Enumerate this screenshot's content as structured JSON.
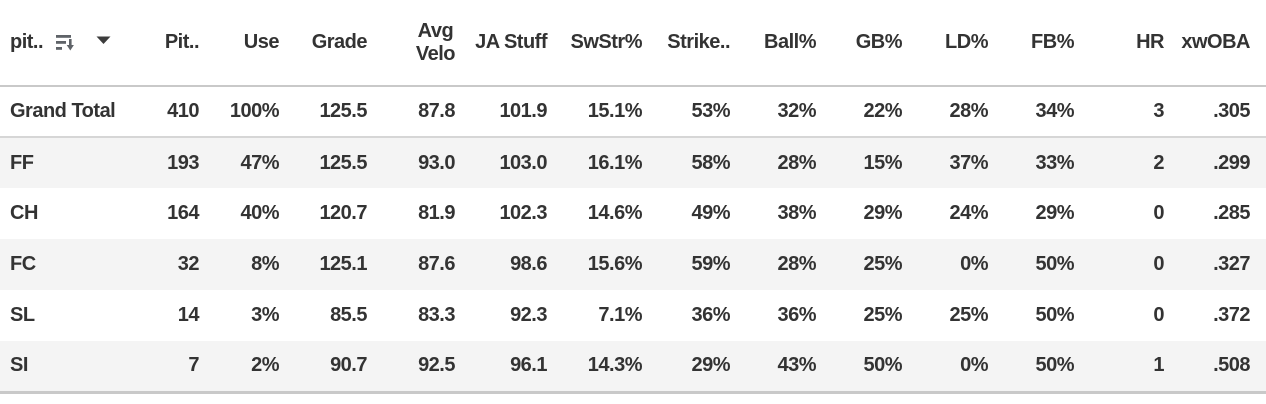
{
  "table": {
    "pitch_column": {
      "label": "pit.."
    },
    "columns": [
      "Pit..",
      "Use",
      "Grade",
      "Avg\nVelo",
      "JA Stuff",
      "SwStr%",
      "Strike..",
      "Ball%",
      "GB%",
      "LD%",
      "FB%",
      "HR",
      "xwOBA"
    ],
    "rows": [
      {
        "pitch": "Grand Total",
        "total": true,
        "values": [
          "410",
          "100%",
          "125.5",
          "87.8",
          "101.9",
          "15.1%",
          "53%",
          "32%",
          "22%",
          "28%",
          "34%",
          "3",
          ".305"
        ]
      },
      {
        "pitch": "FF",
        "total": false,
        "values": [
          "193",
          "47%",
          "125.5",
          "93.0",
          "103.0",
          "16.1%",
          "58%",
          "28%",
          "15%",
          "37%",
          "33%",
          "2",
          ".299"
        ]
      },
      {
        "pitch": "CH",
        "total": false,
        "values": [
          "164",
          "40%",
          "120.7",
          "81.9",
          "102.3",
          "14.6%",
          "49%",
          "38%",
          "29%",
          "24%",
          "29%",
          "0",
          ".285"
        ]
      },
      {
        "pitch": "FC",
        "total": false,
        "values": [
          "32",
          "8%",
          "125.1",
          "87.6",
          "98.6",
          "15.6%",
          "59%",
          "28%",
          "25%",
          "0%",
          "50%",
          "0",
          ".327"
        ]
      },
      {
        "pitch": "SL",
        "total": false,
        "values": [
          "14",
          "3%",
          "85.5",
          "83.3",
          "92.3",
          "7.1%",
          "36%",
          "36%",
          "25%",
          "25%",
          "50%",
          "0",
          ".372"
        ]
      },
      {
        "pitch": "SI",
        "total": false,
        "values": [
          "7",
          "2%",
          "90.7",
          "92.5",
          "96.1",
          "14.3%",
          "29%",
          "43%",
          "50%",
          "0%",
          "50%",
          "1",
          ".508"
        ]
      }
    ]
  },
  "icons": {
    "sort_descending": "sort-descending-icon",
    "dropdown_caret": "▼"
  },
  "colors": {
    "text": "#333333",
    "stripe": "#f4f4f4",
    "border": "#c9c9c9",
    "icon": "#5f6368"
  }
}
